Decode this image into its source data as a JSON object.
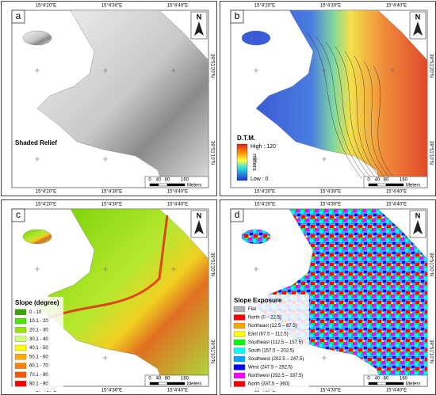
{
  "coords_top": [
    "15°4'20\"E",
    "15°4'30\"E",
    "15°4'40\"E"
  ],
  "coords_right": [
    "39°51'20\"N",
    "39°51'10\"N"
  ],
  "north_label": "N",
  "scale_bar": {
    "labels": [
      "0",
      "40",
      "80",
      "160"
    ],
    "unit": "Meters"
  },
  "panels": [
    {
      "label": "a",
      "kind": "relief",
      "title": "Shaded Relief"
    },
    {
      "label": "b",
      "kind": "dtm",
      "title": "D.T.M.",
      "high": "High : 120",
      "low": "Low : 0",
      "unit": "meters"
    },
    {
      "label": "c",
      "kind": "slope",
      "title": "Slope (degree)",
      "legend": [
        {
          "label": "0 - 10",
          "color": "#38a800"
        },
        {
          "label": "10.1 - 20",
          "color": "#4ce600"
        },
        {
          "label": "20.1 - 30",
          "color": "#98e600"
        },
        {
          "label": "30.1 - 40",
          "color": "#d1ff73"
        },
        {
          "label": "40.1 - 50",
          "color": "#ffff00"
        },
        {
          "label": "50.1 - 60",
          "color": "#ffaa00"
        },
        {
          "label": "60.1 - 70",
          "color": "#ff7f00"
        },
        {
          "label": "70.1 - 80",
          "color": "#ff5500"
        },
        {
          "label": "80.1 - 90",
          "color": "#ff0000"
        }
      ]
    },
    {
      "label": "d",
      "kind": "aspect",
      "title": "Slope Exposure",
      "legend": [
        {
          "label": "Flat",
          "color": "#b2b2b2"
        },
        {
          "label": "North (0 – 22.5)",
          "color": "#ff0000"
        },
        {
          "label": "Northeast (22.5 – 67.5)",
          "color": "#ffa500"
        },
        {
          "label": "East (67.5 – 112.5)",
          "color": "#ffff00"
        },
        {
          "label": "Southeast (112.5 – 157.5)",
          "color": "#00ff00"
        },
        {
          "label": "South (157.5 – 202.5)",
          "color": "#00ffff"
        },
        {
          "label": "Southwest (202.5 – 247.5)",
          "color": "#00a5ff"
        },
        {
          "label": "West (247.5 – 292.5)",
          "color": "#0000ff"
        },
        {
          "label": "Northwest (292.5 – 337.5)",
          "color": "#ff00ff"
        },
        {
          "label": "North (337.5 – 360)",
          "color": "#ff0000"
        }
      ]
    }
  ]
}
